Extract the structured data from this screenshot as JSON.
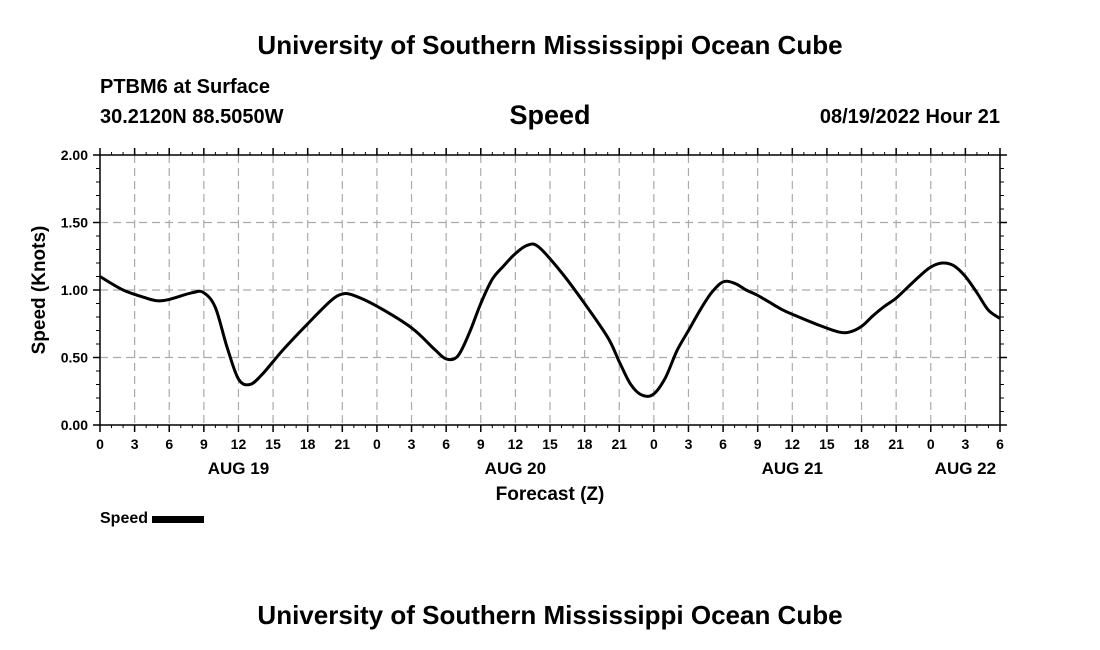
{
  "header": {
    "title": "University of Southern Mississippi Ocean Cube",
    "station": "PTBM6 at Surface",
    "coords": "30.2120N  88.5050W",
    "chart_title": "Speed",
    "datetime": "08/19/2022 Hour 21"
  },
  "footer": {
    "title": "University of Southern Mississippi Ocean Cube"
  },
  "legend": {
    "label": "Speed"
  },
  "chart_data": {
    "type": "line",
    "title": "Speed",
    "xlabel": "Forecast (Z)",
    "ylabel": "Speed (Knots)",
    "xlim": [
      0,
      78
    ],
    "ylim": [
      0,
      2.0
    ],
    "grid": true,
    "legend": "bottom-left",
    "yticks": [
      0,
      0.5,
      1.0,
      1.5,
      2.0
    ],
    "ytick_labels": [
      "0.00",
      "0.50",
      "1.00",
      "1.50",
      "2.00"
    ],
    "xticks": [
      0,
      3,
      6,
      9,
      12,
      15,
      18,
      21,
      24,
      27,
      30,
      33,
      36,
      39,
      42,
      45,
      48,
      51,
      54,
      57,
      60,
      63,
      66,
      69,
      72,
      75,
      78
    ],
    "xtick_labels": [
      "0",
      "3",
      "6",
      "9",
      "12",
      "15",
      "18",
      "21",
      "0",
      "3",
      "6",
      "9",
      "12",
      "15",
      "18",
      "21",
      "0",
      "3",
      "6",
      "9",
      "12",
      "15",
      "18",
      "21",
      "0",
      "3",
      "6"
    ],
    "date_labels": [
      {
        "x": 12,
        "label": "AUG 19"
      },
      {
        "x": 36,
        "label": "AUG 20"
      },
      {
        "x": 60,
        "label": "AUG 21"
      },
      {
        "x": 75,
        "label": "AUG 22"
      }
    ],
    "series": [
      {
        "name": "Speed",
        "color": "#000000",
        "x": [
          0,
          2,
          4,
          5,
          6,
          8,
          9,
          10,
          11,
          12,
          13,
          14,
          15,
          16,
          18,
          20,
          21,
          22,
          24,
          27,
          29,
          30,
          31,
          32,
          33,
          34,
          35,
          36,
          37,
          38,
          40,
          42,
          44,
          45,
          46,
          47,
          48,
          49,
          50,
          51,
          52,
          53,
          54,
          55,
          56,
          57,
          58,
          59,
          60,
          62,
          64,
          65,
          66,
          67,
          68,
          69,
          70,
          71,
          72,
          73,
          74,
          75,
          76,
          77,
          78
        ],
        "values": [
          1.1,
          1.0,
          0.94,
          0.92,
          0.93,
          0.98,
          0.98,
          0.87,
          0.58,
          0.34,
          0.3,
          0.37,
          0.47,
          0.57,
          0.75,
          0.92,
          0.97,
          0.96,
          0.88,
          0.72,
          0.56,
          0.49,
          0.51,
          0.68,
          0.9,
          1.08,
          1.18,
          1.27,
          1.33,
          1.32,
          1.13,
          0.9,
          0.65,
          0.47,
          0.3,
          0.22,
          0.23,
          0.35,
          0.55,
          0.7,
          0.85,
          0.98,
          1.06,
          1.05,
          1.0,
          0.96,
          0.91,
          0.86,
          0.82,
          0.75,
          0.69,
          0.69,
          0.73,
          0.81,
          0.88,
          0.94,
          1.02,
          1.1,
          1.17,
          1.2,
          1.18,
          1.1,
          0.98,
          0.85,
          0.79
        ]
      }
    ]
  }
}
